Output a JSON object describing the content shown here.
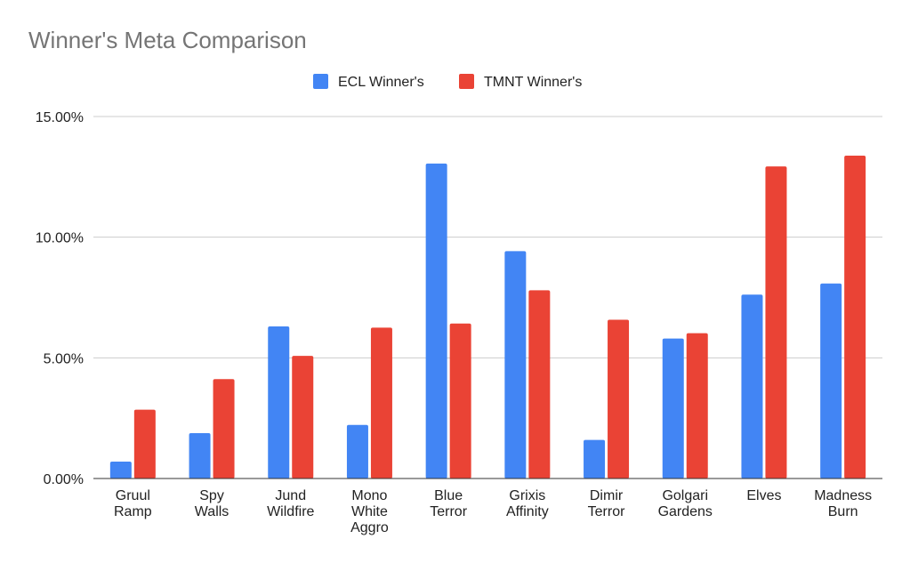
{
  "chart_data": {
    "type": "bar",
    "title": "Winner's Meta Comparison",
    "categories": [
      [
        "Gruul",
        "Ramp"
      ],
      [
        "Spy",
        "Walls"
      ],
      [
        "Jund",
        "Wildfire"
      ],
      [
        "Mono",
        "White",
        "Aggro"
      ],
      [
        "Blue",
        "Terror"
      ],
      [
        "Grixis",
        "Affinity"
      ],
      [
        "Dimir",
        "Terror"
      ],
      [
        "Golgari",
        "Gardens"
      ],
      [
        "Elves"
      ],
      [
        "Madness",
        "Burn"
      ]
    ],
    "series": [
      {
        "name": "ECL Winner's",
        "color": "#4285f4",
        "values": [
          0.7,
          1.88,
          6.3,
          2.22,
          13.05,
          9.42,
          1.6,
          5.8,
          7.62,
          8.08
        ]
      },
      {
        "name": "TMNT Winner's",
        "color": "#ea4335",
        "values": [
          2.85,
          4.12,
          5.08,
          6.25,
          6.42,
          7.8,
          6.58,
          6.02,
          12.93,
          13.38
        ]
      }
    ],
    "ylim": [
      0,
      15
    ],
    "yticks": [
      0,
      5,
      10,
      15
    ],
    "ytick_labels": [
      "0.00%",
      "5.00%",
      "10.00%",
      "15.00%"
    ],
    "xlabel": "",
    "ylabel": "",
    "legend_position": "top-center",
    "grid": true
  }
}
